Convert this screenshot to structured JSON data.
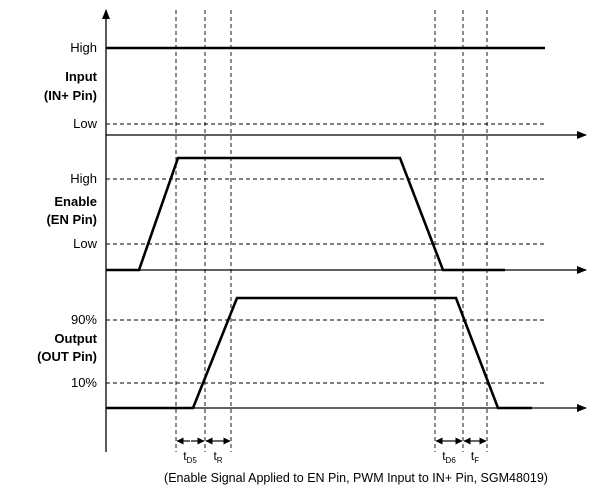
{
  "panels": {
    "input": {
      "title_line1": "Input",
      "title_line2": "(IN+ Pin)",
      "high_label": "High",
      "low_label": "Low"
    },
    "enable": {
      "title_line1": "Enable",
      "title_line2": "(EN Pin)",
      "high_label": "High",
      "low_label": "Low"
    },
    "output": {
      "title_line1": "Output",
      "title_line2": "(OUT Pin)",
      "high_label": "90%",
      "low_label": "10%"
    }
  },
  "timing": {
    "td5": {
      "main": "t",
      "sub": "D5"
    },
    "tr": {
      "main": "t",
      "sub": "R"
    },
    "td6": {
      "main": "t",
      "sub": "D6"
    },
    "tf": {
      "main": "t",
      "sub": "F"
    }
  },
  "caption": "(Enable Signal Applied to EN Pin, PWM Input to IN+ Pin, SGM48019)"
}
